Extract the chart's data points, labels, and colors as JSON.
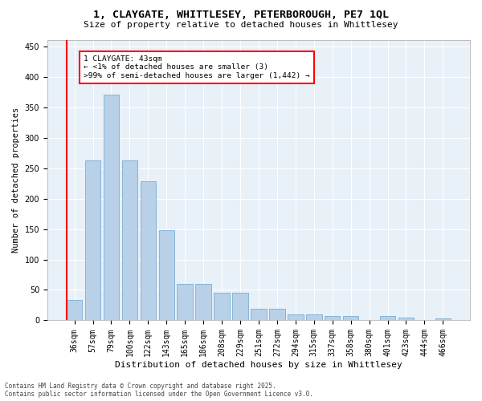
{
  "title_line1": "1, CLAYGATE, WHITTLESEY, PETERBOROUGH, PE7 1QL",
  "title_line2": "Size of property relative to detached houses in Whittlesey",
  "xlabel": "Distribution of detached houses by size in Whittlesey",
  "ylabel": "Number of detached properties",
  "bar_color": "#b8d0e8",
  "bar_edge_color": "#7aafd4",
  "background_color": "#e8f0f8",
  "grid_color": "#ffffff",
  "categories": [
    "36sqm",
    "57sqm",
    "79sqm",
    "100sqm",
    "122sqm",
    "143sqm",
    "165sqm",
    "186sqm",
    "208sqm",
    "229sqm",
    "251sqm",
    "272sqm",
    "294sqm",
    "315sqm",
    "337sqm",
    "358sqm",
    "380sqm",
    "401sqm",
    "423sqm",
    "444sqm",
    "466sqm"
  ],
  "values": [
    33,
    263,
    370,
    263,
    228,
    148,
    60,
    60,
    45,
    45,
    19,
    19,
    10,
    10,
    7,
    7,
    0,
    7,
    4,
    0,
    3
  ],
  "ylim": [
    0,
    460
  ],
  "yticks": [
    0,
    50,
    100,
    150,
    200,
    250,
    300,
    350,
    400,
    450
  ],
  "annotation_title": "1 CLAYGATE: 43sqm",
  "annotation_line2": "← <1% of detached houses are smaller (3)",
  "annotation_line3": ">99% of semi-detached houses are larger (1,442) →",
  "footer_line1": "Contains HM Land Registry data © Crown copyright and database right 2025.",
  "footer_line2": "Contains public sector information licensed under the Open Government Licence v3.0.",
  "highlight_bar_index": 0
}
